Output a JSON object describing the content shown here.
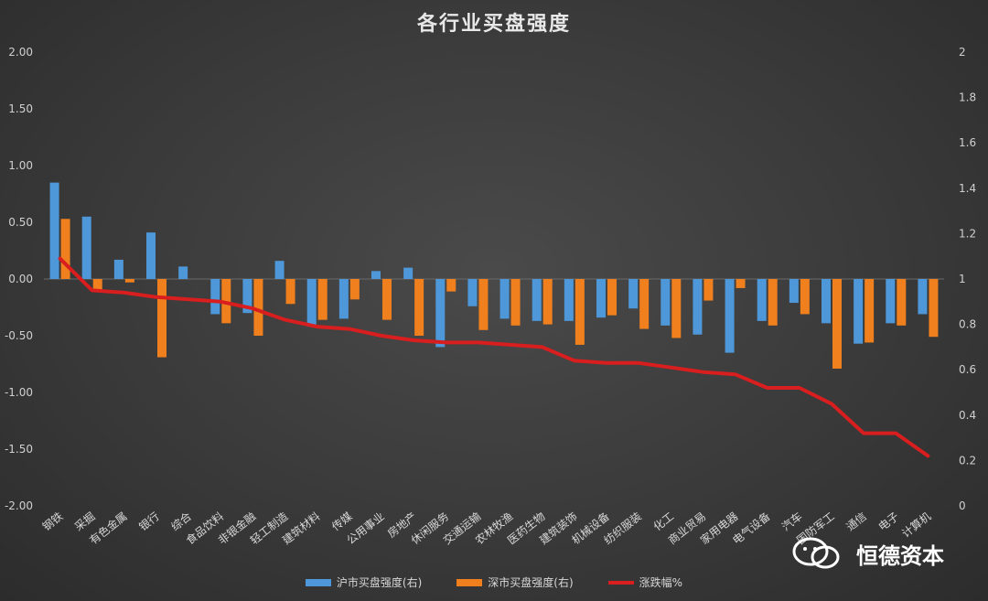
{
  "chart_data": {
    "type": "bar+line",
    "title": "各行业买盘强度",
    "categories": [
      "钢铁",
      "采掘",
      "有色金属",
      "银行",
      "综合",
      "食品饮料",
      "非银金融",
      "轻工制造",
      "建筑材料",
      "传媒",
      "公用事业",
      "房地产",
      "休闲服务",
      "交通运输",
      "农林牧渔",
      "医药生物",
      "建筑装饰",
      "机械设备",
      "纺织服装",
      "化工",
      "商业贸易",
      "家用电器",
      "电气设备",
      "汽车",
      "国防军工",
      "通信",
      "电子",
      "计算机"
    ],
    "series": [
      {
        "name": "沪市买盘强度(右)",
        "color": "#4e97d8",
        "axis": "left",
        "values": [
          0.85,
          0.55,
          0.17,
          0.41,
          0.11,
          -0.31,
          -0.3,
          0.16,
          -0.42,
          -0.35,
          0.07,
          0.1,
          -0.6,
          -0.24,
          -0.35,
          -0.37,
          -0.37,
          -0.34,
          -0.26,
          -0.41,
          -0.49,
          -0.65,
          -0.37,
          -0.21,
          -0.39,
          -0.57,
          -0.39,
          -0.31
        ]
      },
      {
        "name": "深市买盘强度(右)",
        "color": "#f07f1e",
        "axis": "left",
        "values": [
          0.53,
          -0.1,
          -0.03,
          -0.69,
          0.0,
          -0.39,
          -0.5,
          -0.22,
          -0.36,
          -0.18,
          -0.36,
          -0.5,
          -0.11,
          -0.45,
          -0.41,
          -0.4,
          -0.58,
          -0.32,
          -0.44,
          -0.52,
          -0.19,
          -0.08,
          -0.41,
          -0.31,
          -0.79,
          -0.56,
          -0.41,
          -0.51
        ]
      },
      {
        "name": "涨跌幅%",
        "color": "#d81e1e",
        "axis": "right",
        "values": [
          1.09,
          0.95,
          0.94,
          0.92,
          0.91,
          0.9,
          0.87,
          0.82,
          0.79,
          0.78,
          0.75,
          0.73,
          0.72,
          0.72,
          0.71,
          0.7,
          0.64,
          0.63,
          0.63,
          0.61,
          0.59,
          0.58,
          0.52,
          0.52,
          0.45,
          0.32,
          0.32,
          0.22
        ]
      }
    ],
    "y_left": {
      "min": -2.0,
      "max": 2.0,
      "step": 0.5,
      "ticks": [
        "2.00",
        "1.50",
        "1.00",
        "0.50",
        "0.00",
        "-0.50",
        "-1.00",
        "-1.50",
        "-2.00"
      ]
    },
    "y_right": {
      "min": 0,
      "max": 2,
      "step": 0.2,
      "ticks": [
        "2",
        "1.8",
        "1.6",
        "1.4",
        "1.2",
        "1",
        "0.8",
        "0.6",
        "0.4",
        "0.2",
        "0"
      ]
    },
    "grid": false,
    "legend_position": "bottom"
  },
  "watermark": {
    "text": "恒德资本"
  }
}
